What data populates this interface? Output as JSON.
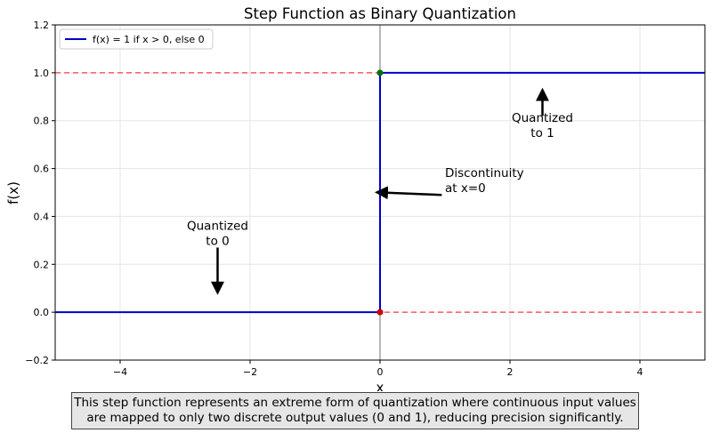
{
  "chart_data": {
    "type": "line",
    "title": "Step Function as Binary Quantization",
    "xlabel": "x",
    "ylabel": "f(x)",
    "xlim": [
      -5,
      5
    ],
    "ylim": [
      -0.2,
      1.2
    ],
    "xticks": [
      -4,
      -2,
      0,
      2,
      4
    ],
    "xtick_labels": [
      "−4",
      "−2",
      "0",
      "2",
      "4"
    ],
    "yticks": [
      -0.2,
      0.0,
      0.2,
      0.4,
      0.6,
      0.8,
      1.0,
      1.2
    ],
    "ytick_labels": [
      "−0.2",
      "0.0",
      "0.2",
      "0.4",
      "0.6",
      "0.8",
      "1.0",
      "1.2"
    ],
    "grid": true,
    "legend_position": "top-left",
    "series": [
      {
        "name": "f(x) = 1 if x > 0, else 0",
        "color": "#0000cc",
        "x": [
          -5,
          0,
          0,
          5
        ],
        "y": [
          0,
          0,
          1,
          1
        ]
      }
    ],
    "reference_lines": [
      {
        "orientation": "horizontal",
        "y": 0,
        "color": "#ff0000",
        "style": "dashed"
      },
      {
        "orientation": "horizontal",
        "y": 1,
        "color": "#ff0000",
        "style": "dashed"
      },
      {
        "orientation": "vertical",
        "x": 0,
        "color": "#808080",
        "style": "solid"
      }
    ],
    "points": [
      {
        "x": 0,
        "y": 0,
        "color": "#cc0000"
      },
      {
        "x": 0,
        "y": 1,
        "color": "#007000"
      }
    ],
    "annotations": [
      {
        "lines": [
          "Quantized",
          "to 0"
        ],
        "text_x": -2.5,
        "text_y": 0.33,
        "arrow_from": [
          -2.5,
          0.27
        ],
        "arrow_to": [
          -2.5,
          0.1
        ]
      },
      {
        "lines": [
          "Quantized",
          "to 1"
        ],
        "text_x": 2.5,
        "text_y": 0.78,
        "arrow_from": [
          2.5,
          0.82
        ],
        "arrow_to": [
          2.5,
          0.91
        ]
      },
      {
        "lines": [
          "Discontinuity",
          "at x=0"
        ],
        "text_x": 1.0,
        "text_y": 0.55,
        "arrow_from": [
          0.95,
          0.49
        ],
        "arrow_to": [
          0.02,
          0.5
        ],
        "align": "left"
      }
    ]
  },
  "caption": {
    "line1": "This step function represents an extreme form of quantization where continuous input values",
    "line2": "are mapped to only two discrete output values (0 and 1), reducing precision significantly."
  }
}
